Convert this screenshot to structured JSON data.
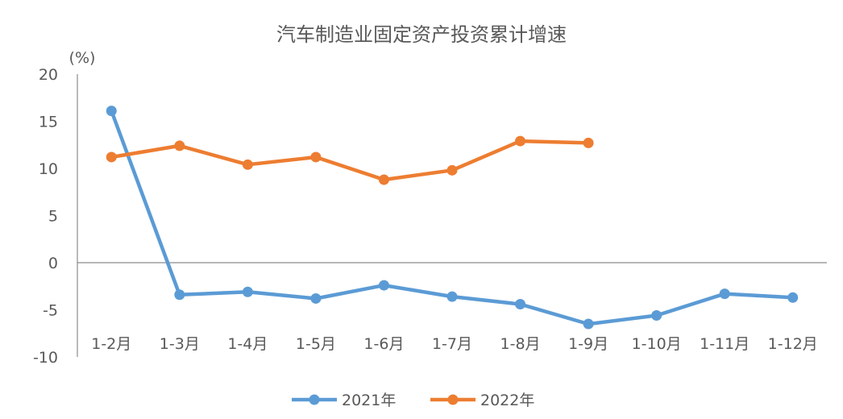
{
  "chart_data": {
    "type": "line",
    "title": "汽车制造业固定资产投资累计增速",
    "y_unit": "(%)",
    "xlabel": "",
    "ylabel": "",
    "categories": [
      "1-2月",
      "1-3月",
      "1-4月",
      "1-5月",
      "1-6月",
      "1-7月",
      "1-8月",
      "1-9月",
      "1-10月",
      "1-11月",
      "1-12月"
    ],
    "ylim": [
      -10,
      20
    ],
    "yticks": [
      20,
      15,
      10,
      5,
      0,
      -5,
      -10
    ],
    "grid": false,
    "legend_position": "bottom",
    "series": [
      {
        "name": "2021年",
        "color": "#5B9BD5",
        "values": [
          16.1,
          -3.4,
          -3.1,
          -3.8,
          -2.4,
          -3.6,
          -4.4,
          -6.5,
          -5.6,
          -3.3,
          -3.7
        ]
      },
      {
        "name": "2022年",
        "color": "#ED7D31",
        "values": [
          11.2,
          12.4,
          10.4,
          11.2,
          8.8,
          9.8,
          12.9,
          12.7,
          null,
          null,
          null
        ]
      }
    ]
  }
}
